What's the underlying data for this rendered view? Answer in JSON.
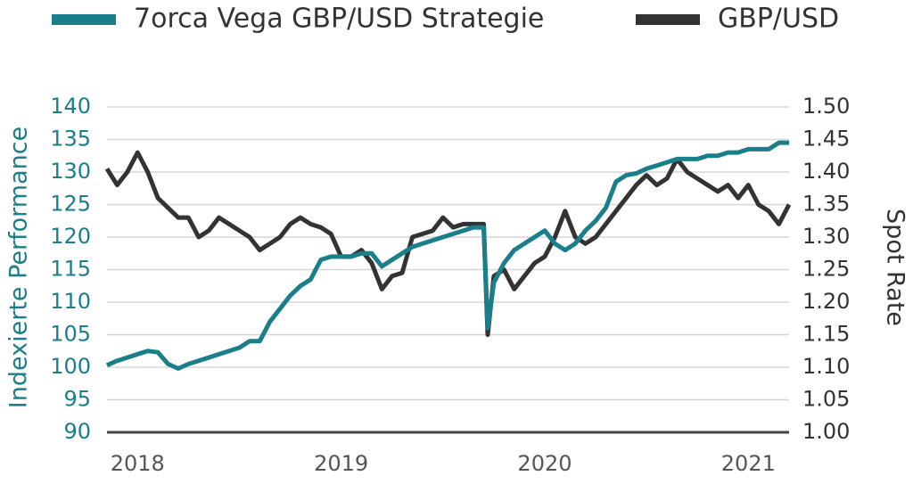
{
  "chart_data": {
    "type": "line",
    "ylabel": "Indexierte Performance",
    "y2label": "Spot Rate",
    "x": [
      2017.85,
      2017.9,
      2017.95,
      2018,
      2018.05,
      2018.1,
      2018.15,
      2018.2,
      2018.25,
      2018.3,
      2018.35,
      2018.4,
      2018.45,
      2018.5,
      2018.55,
      2018.6,
      2018.65,
      2018.7,
      2018.75,
      2018.8,
      2018.85,
      2018.9,
      2018.95,
      2019,
      2019.05,
      2019.1,
      2019.15,
      2019.2,
      2019.25,
      2019.3,
      2019.35,
      2019.4,
      2019.45,
      2019.5,
      2019.55,
      2019.6,
      2019.65,
      2019.7,
      2019.72,
      2019.75,
      2019.8,
      2019.85,
      2019.9,
      2019.95,
      2020,
      2020.05,
      2020.1,
      2020.15,
      2020.2,
      2020.25,
      2020.3,
      2020.35,
      2020.4,
      2020.45,
      2020.5,
      2020.55,
      2020.6,
      2020.65,
      2020.7,
      2020.75,
      2020.8,
      2020.85,
      2020.9,
      2020.95,
      2021,
      2021.05,
      2021.1,
      2021.15,
      2021.2
    ],
    "series": [
      {
        "name": "7orca Vega GBP/USD Strategie",
        "color": "#1a7f8b",
        "axis": "y",
        "values": [
          100.3,
          101,
          101.5,
          102,
          102.5,
          102.3,
          100.5,
          99.8,
          100.5,
          101,
          101.5,
          102,
          102.5,
          103,
          104,
          104,
          107,
          109,
          111,
          112.5,
          113.5,
          116.5,
          117,
          117,
          117,
          117.5,
          117.5,
          115.5,
          116.5,
          117.5,
          118.5,
          119,
          119.5,
          120,
          120.5,
          121,
          121.5,
          121.5,
          106,
          113,
          116,
          118,
          119,
          120,
          121,
          119,
          118,
          119,
          121,
          122.5,
          124.5,
          128.5,
          129.5,
          129.8,
          130.5,
          131,
          131.5,
          132,
          132,
          132,
          132.5,
          132.5,
          133,
          133,
          133.5,
          133.5,
          133.5,
          134.5,
          134.5
        ]
      },
      {
        "name": "GBP/USD",
        "color": "#333333",
        "axis": "y2",
        "values": [
          1.405,
          1.38,
          1.4,
          1.43,
          1.4,
          1.36,
          1.345,
          1.33,
          1.33,
          1.3,
          1.31,
          1.33,
          1.32,
          1.31,
          1.3,
          1.28,
          1.29,
          1.3,
          1.32,
          1.33,
          1.32,
          1.315,
          1.305,
          1.27,
          1.27,
          1.28,
          1.26,
          1.22,
          1.24,
          1.245,
          1.3,
          1.305,
          1.31,
          1.33,
          1.315,
          1.32,
          1.32,
          1.32,
          1.15,
          1.24,
          1.25,
          1.22,
          1.24,
          1.26,
          1.27,
          1.3,
          1.34,
          1.3,
          1.29,
          1.3,
          1.32,
          1.34,
          1.36,
          1.38,
          1.395,
          1.38,
          1.39,
          1.42,
          1.4,
          1.39,
          1.38,
          1.37,
          1.38,
          1.36,
          1.38,
          1.35,
          1.34,
          1.32,
          1.35
        ]
      }
    ],
    "xlim": [
      2017.85,
      2021.2
    ],
    "xticks": [
      2018,
      2019,
      2020,
      2021
    ],
    "ylim": [
      90,
      140
    ],
    "yticks": [
      90,
      95,
      100,
      105,
      110,
      115,
      120,
      125,
      130,
      135,
      140
    ],
    "y2lim": [
      1.0,
      1.5
    ],
    "y2ticks": [
      {
        "value": 1.0,
        "label": "1.00"
      },
      {
        "value": 1.05,
        "label": "1.05"
      },
      {
        "value": 1.1,
        "label": "1.10"
      },
      {
        "value": 1.15,
        "label": "1.15"
      },
      {
        "value": 1.2,
        "label": "1.20"
      },
      {
        "value": 1.25,
        "label": "1.25"
      },
      {
        "value": 1.3,
        "label": "1.30"
      },
      {
        "value": 1.35,
        "label": "1.35"
      },
      {
        "value": 1.4,
        "label": "1.40"
      },
      {
        "value": 1.45,
        "label": "1.45"
      },
      {
        "value": 1.5,
        "label": "1.50"
      }
    ],
    "grid": true
  }
}
